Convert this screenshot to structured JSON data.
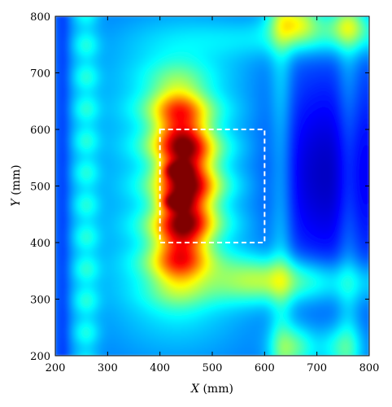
{
  "chart_data": {
    "type": "heatmap",
    "title": "",
    "xlabel": {
      "var": "X",
      "unit": " (mm)"
    },
    "ylabel": {
      "var": "Y",
      "unit": " (mm)"
    },
    "xlim": [
      200,
      800
    ],
    "ylim": [
      200,
      800
    ],
    "xticks": [
      200,
      300,
      400,
      500,
      600,
      700,
      800
    ],
    "yticks": [
      200,
      300,
      400,
      500,
      600,
      700,
      800
    ],
    "colormap": "jet",
    "grid": false,
    "annotations": [
      {
        "type": "dashed-rectangle",
        "color": "#ffffff",
        "x": [
          400,
          600
        ],
        "y": [
          400,
          600
        ]
      }
    ],
    "features": [
      {
        "name": "red-arc",
        "shape": "arc",
        "center_x": 440,
        "y_range": [
          260,
          760
        ],
        "intensity": "high"
      },
      {
        "name": "dark-spot-upper",
        "x": 432,
        "y": 528,
        "intensity": "max"
      },
      {
        "name": "dark-spot-lower",
        "x": 428,
        "y": 472,
        "intensity": "max"
      },
      {
        "name": "low-intensity-region",
        "x_range": [
          560,
          800
        ],
        "y_range": [
          280,
          760
        ],
        "intensity": "low"
      }
    ]
  }
}
